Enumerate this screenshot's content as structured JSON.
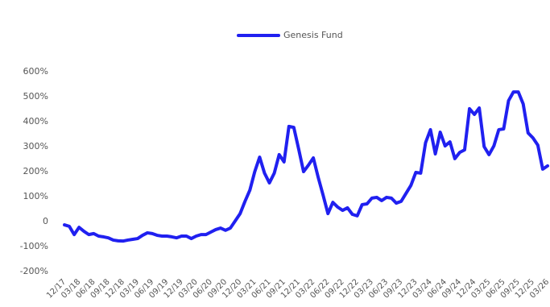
{
  "chart_data": {
    "type": "line",
    "categories": [
      "12/17",
      null,
      null,
      "03/18",
      null,
      null,
      "06/18",
      null,
      null,
      "09/18",
      null,
      null,
      "12/18",
      null,
      null,
      "03/19",
      null,
      null,
      "06/19",
      null,
      null,
      "09/19",
      null,
      null,
      "12/19",
      null,
      null,
      "03/20",
      null,
      null,
      "06/20",
      null,
      null,
      "09/20",
      null,
      null,
      "12/20",
      null,
      null,
      "03/21",
      null,
      null,
      "06/21",
      null,
      null,
      "09/21",
      null,
      null,
      "12/21",
      null,
      null,
      "03/22",
      null,
      null,
      "06/22",
      null,
      null,
      "09/22",
      null,
      null,
      "12/22",
      null,
      null,
      "03/23",
      null,
      null,
      "06/23",
      null,
      null,
      "09/23",
      null,
      null,
      "12/23",
      null,
      null,
      "03/24",
      null,
      null,
      "06/24",
      null,
      null,
      "09/24",
      null,
      null,
      "12/24",
      null,
      null,
      "03/25",
      null,
      null,
      "06/25",
      null,
      null,
      "09/25",
      null,
      null,
      "12/25",
      null,
      null,
      "03/26"
    ],
    "series": [
      {
        "name": "Genesis Fund",
        "color": "#2020f0",
        "values": [
          -13,
          -19,
          -52,
          -23,
          -39,
          -52,
          -48,
          -58,
          -61,
          -65,
          -74,
          -77,
          -78,
          -74,
          -71,
          -68,
          -55,
          -45,
          -48,
          -55,
          -58,
          -58,
          -61,
          -65,
          -58,
          -58,
          -68,
          -58,
          -52,
          -52,
          -42,
          -32,
          -26,
          -35,
          -26,
          3,
          32,
          81,
          126,
          200,
          258,
          194,
          155,
          194,
          268,
          239,
          381,
          377,
          290,
          200,
          226,
          255,
          177,
          106,
          32,
          77,
          58,
          45,
          55,
          29,
          23,
          68,
          71,
          94,
          97,
          84,
          97,
          94,
          74,
          81,
          113,
          145,
          197,
          194,
          316,
          368,
          271,
          358,
          303,
          319,
          252,
          277,
          287,
          452,
          429,
          455,
          300,
          268,
          303,
          368,
          371,
          484,
          519,
          519,
          471,
          355,
          335,
          306,
          210,
          223
        ]
      }
    ],
    "ylim": [
      -200,
      600
    ],
    "yticks": [
      {
        "value": -200,
        "label": "-200%"
      },
      {
        "value": -100,
        "label": "-100%"
      },
      0,
      {
        "value": 100,
        "label": "100%"
      },
      {
        "value": 200,
        "label": "200%"
      },
      {
        "value": 300,
        "label": "300%"
      },
      {
        "value": 400,
        "label": "400%"
      },
      {
        "value": 500,
        "label": "500%"
      },
      {
        "value": 600,
        "label": "600%"
      }
    ],
    "legend": "top"
  }
}
